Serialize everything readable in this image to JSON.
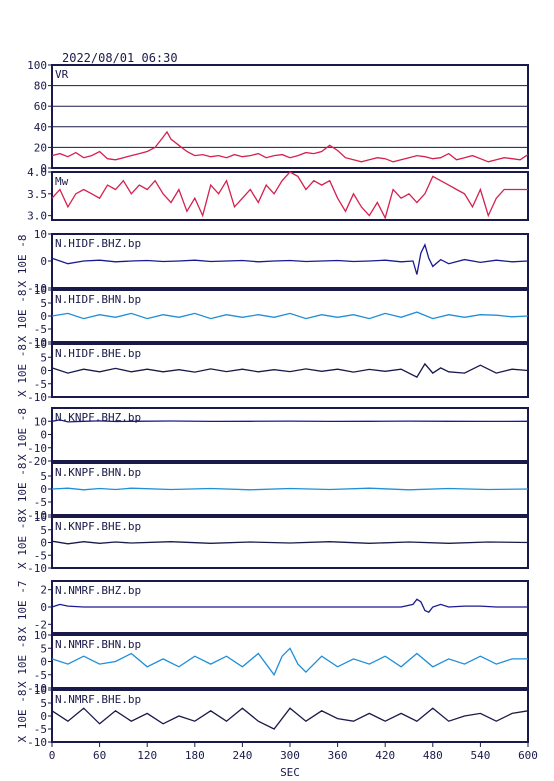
{
  "header": {
    "datetime": "2022/08/01 06:30"
  },
  "xaxis": {
    "label": "SEC",
    "ticks": [
      "0",
      "60",
      "120",
      "180",
      "240",
      "300",
      "360",
      "420",
      "480",
      "540",
      "600"
    ],
    "range": [
      0,
      600
    ]
  },
  "colors": {
    "frame": "#1a1a4a",
    "vr": "#d6204e",
    "mw": "#d6204e",
    "dark_trace": "#1a1a90",
    "light_trace": "#1f8fd6",
    "grid": "#1a1a4a"
  },
  "chart_data": [
    {
      "type": "line",
      "label": "VR",
      "color": "#d6204e",
      "ylim": [
        0,
        100
      ],
      "yticks": [
        "0",
        "20",
        "40",
        "60",
        "80",
        "100"
      ],
      "grid": true,
      "x": [
        0,
        10,
        20,
        30,
        40,
        50,
        60,
        70,
        80,
        90,
        100,
        110,
        120,
        130,
        140,
        145,
        150,
        160,
        170,
        180,
        190,
        200,
        210,
        220,
        230,
        240,
        250,
        260,
        270,
        280,
        290,
        300,
        310,
        320,
        330,
        340,
        350,
        360,
        370,
        380,
        390,
        400,
        410,
        420,
        430,
        440,
        450,
        460,
        470,
        480,
        490,
        500,
        510,
        520,
        530,
        540,
        550,
        560,
        570,
        580,
        590,
        600
      ],
      "values": [
        12,
        14,
        11,
        15,
        10,
        12,
        16,
        9,
        8,
        10,
        12,
        14,
        16,
        20,
        30,
        35,
        28,
        22,
        16,
        12,
        13,
        11,
        12,
        10,
        13,
        11,
        12,
        14,
        10,
        12,
        13,
        10,
        12,
        15,
        14,
        16,
        22,
        17,
        10,
        8,
        6,
        8,
        10,
        9,
        6,
        8,
        10,
        12,
        11,
        9,
        10,
        14,
        8,
        10,
        12,
        9,
        6,
        8,
        10,
        9,
        8,
        13
      ]
    },
    {
      "type": "line",
      "label": "Mw",
      "color": "#d6204e",
      "ylim": [
        2.9,
        4.0
      ],
      "yticks": [
        "3.0",
        "3.5",
        "4.0"
      ],
      "grid": false,
      "x": [
        0,
        10,
        20,
        30,
        40,
        50,
        60,
        70,
        80,
        90,
        100,
        110,
        120,
        130,
        140,
        150,
        160,
        170,
        180,
        190,
        200,
        210,
        220,
        230,
        240,
        250,
        260,
        270,
        280,
        290,
        300,
        310,
        320,
        330,
        340,
        350,
        360,
        370,
        380,
        390,
        400,
        410,
        420,
        430,
        440,
        450,
        460,
        470,
        480,
        490,
        500,
        510,
        520,
        530,
        540,
        550,
        560,
        570,
        580,
        590,
        600
      ],
      "values": [
        3.4,
        3.6,
        3.2,
        3.5,
        3.6,
        3.5,
        3.4,
        3.7,
        3.6,
        3.8,
        3.5,
        3.7,
        3.6,
        3.8,
        3.5,
        3.3,
        3.6,
        3.1,
        3.4,
        3.0,
        3.7,
        3.5,
        3.8,
        3.2,
        3.4,
        3.6,
        3.3,
        3.7,
        3.5,
        3.8,
        4.0,
        3.9,
        3.6,
        3.8,
        3.7,
        3.8,
        3.4,
        3.1,
        3.5,
        3.2,
        3.0,
        3.3,
        2.95,
        3.6,
        3.4,
        3.5,
        3.3,
        3.5,
        3.9,
        3.8,
        3.7,
        3.6,
        3.5,
        3.2,
        3.6,
        3.0,
        3.4,
        3.6,
        3.6,
        3.6,
        3.6
      ]
    },
    {
      "type": "line",
      "label": "N.HIDF.BHZ.bp",
      "units": "X 10E -8",
      "color": "#1a1a90",
      "ylim": [
        -10,
        10
      ],
      "yticks": [
        "-10",
        "0",
        "10"
      ],
      "x": [
        0,
        20,
        40,
        60,
        80,
        100,
        120,
        140,
        160,
        180,
        200,
        220,
        240,
        260,
        280,
        300,
        320,
        340,
        360,
        380,
        400,
        420,
        440,
        455,
        460,
        465,
        470,
        475,
        480,
        490,
        500,
        520,
        540,
        560,
        580,
        600
      ],
      "values": [
        1,
        -1,
        0,
        0.3,
        -0.3,
        0,
        0.2,
        -0.2,
        0,
        0.3,
        -0.2,
        0,
        0.2,
        -0.3,
        0,
        0.2,
        -0.2,
        0,
        0.2,
        -0.2,
        0,
        0.3,
        -0.3,
        0,
        -5,
        3,
        6,
        1,
        -2,
        0.5,
        -1,
        0.5,
        -0.5,
        0.3,
        -0.3,
        0
      ]
    },
    {
      "type": "line",
      "label": "N.HIDF.BHN.bp",
      "units": "X 10E -8",
      "color": "#1f8fd6",
      "ylim": [
        -10,
        10
      ],
      "yticks": [
        "-10",
        "-5",
        "0",
        "5",
        "10"
      ],
      "x": [
        0,
        20,
        40,
        60,
        80,
        100,
        120,
        140,
        160,
        180,
        200,
        220,
        240,
        260,
        280,
        300,
        320,
        340,
        360,
        380,
        400,
        420,
        440,
        460,
        480,
        500,
        520,
        540,
        560,
        580,
        600
      ],
      "values": [
        0,
        1,
        -1,
        0.5,
        -0.5,
        1,
        -1,
        0.5,
        -0.5,
        1,
        -1,
        0.5,
        -0.5,
        0.5,
        -0.5,
        1,
        -1,
        0.5,
        -0.5,
        0.5,
        -1,
        1,
        -0.5,
        1.5,
        -1,
        0.5,
        -0.5,
        0.5,
        0.3,
        -0.3,
        0
      ]
    },
    {
      "type": "line",
      "label": "N.HIDF.BHE.bp",
      "units": "X 10E -8",
      "color": "#1a1a4a",
      "ylim": [
        -10,
        10
      ],
      "yticks": [
        "-10",
        "-5",
        "0",
        "5",
        "10"
      ],
      "x": [
        0,
        20,
        40,
        60,
        80,
        100,
        120,
        140,
        160,
        180,
        200,
        220,
        240,
        260,
        280,
        300,
        320,
        340,
        360,
        380,
        400,
        420,
        440,
        460,
        470,
        480,
        490,
        500,
        520,
        540,
        560,
        580,
        600
      ],
      "values": [
        1,
        -1,
        0.5,
        -0.5,
        0.8,
        -0.5,
        0.5,
        -0.5,
        0.3,
        -0.6,
        0.6,
        -0.4,
        0.5,
        -0.5,
        0.3,
        -0.4,
        0.6,
        -0.3,
        0.5,
        -0.6,
        0.4,
        -0.3,
        0.5,
        -2.5,
        2.5,
        -1,
        1,
        -0.5,
        -1,
        2,
        -1,
        0.5,
        0
      ]
    },
    {
      "type": "line",
      "label": "N.KNPF.BHZ.bp",
      "units": "X 10E -8",
      "color": "#1a1a90",
      "ylim": [
        -20,
        20
      ],
      "yticks": [
        "-20",
        "-10",
        "0",
        "10"
      ],
      "x": [
        0,
        10,
        20,
        40,
        60,
        80,
        100,
        150,
        200,
        250,
        300,
        350,
        400,
        450,
        500,
        550,
        600
      ],
      "values": [
        10,
        11,
        9.5,
        10,
        10.3,
        9.8,
        10,
        10.2,
        9.9,
        10,
        10.1,
        9.9,
        10,
        10.1,
        10,
        9.9,
        10
      ]
    },
    {
      "type": "line",
      "label": "N.KNPF.BHN.bp",
      "units": "X 10E -8",
      "color": "#1f8fd6",
      "ylim": [
        -10,
        10
      ],
      "yticks": [
        "-10",
        "-5",
        "0",
        "5"
      ],
      "x": [
        0,
        20,
        40,
        60,
        80,
        100,
        150,
        200,
        250,
        300,
        350,
        400,
        450,
        500,
        550,
        600
      ],
      "values": [
        0,
        0.3,
        -0.3,
        0.2,
        -0.2,
        0.3,
        -0.2,
        0.2,
        -0.3,
        0.2,
        -0.2,
        0.3,
        -0.3,
        0.2,
        -0.2,
        0
      ]
    },
    {
      "type": "line",
      "label": "N.KNPF.BHE.bp",
      "units": "X 10E -8",
      "color": "#1a1a4a",
      "ylim": [
        -10,
        10
      ],
      "yticks": [
        "-10",
        "-5",
        "0",
        "5",
        "10"
      ],
      "x": [
        0,
        20,
        40,
        60,
        80,
        100,
        150,
        200,
        250,
        300,
        350,
        400,
        450,
        500,
        550,
        600
      ],
      "values": [
        0.5,
        -0.5,
        0.3,
        -0.3,
        0.2,
        -0.2,
        0.3,
        -0.3,
        0.2,
        -0.2,
        0.3,
        -0.3,
        0.2,
        -0.3,
        0.2,
        0
      ]
    },
    {
      "type": "line",
      "label": "N.NMRF.BHZ.bp",
      "units": "X 10E -7",
      "color": "#1a1a90",
      "ylim": [
        -3,
        3
      ],
      "yticks": [
        "-2",
        "0",
        "2"
      ],
      "x": [
        0,
        10,
        20,
        40,
        60,
        100,
        200,
        300,
        400,
        440,
        455,
        460,
        465,
        470,
        475,
        480,
        490,
        500,
        520,
        540,
        560,
        580,
        600
      ],
      "values": [
        0,
        0.3,
        0.1,
        0,
        0,
        0,
        0,
        0,
        0,
        0,
        0.3,
        0.9,
        0.6,
        -0.4,
        -0.6,
        0,
        0.3,
        0,
        0.1,
        0.1,
        0,
        0,
        0
      ]
    },
    {
      "type": "line",
      "label": "N.NMRF.BHN.bp",
      "units": "X 10E -8",
      "color": "#1f8fd6",
      "ylim": [
        -10,
        10
      ],
      "yticks": [
        "-10",
        "-5",
        "0",
        "5",
        "10"
      ],
      "x": [
        0,
        20,
        40,
        60,
        80,
        100,
        120,
        140,
        160,
        180,
        200,
        220,
        240,
        260,
        280,
        290,
        300,
        310,
        320,
        340,
        360,
        380,
        400,
        420,
        440,
        460,
        480,
        500,
        520,
        540,
        560,
        580,
        600
      ],
      "values": [
        1,
        -1,
        2,
        -1,
        0,
        3,
        -2,
        1,
        -2,
        2,
        -1,
        2,
        -2,
        3,
        -5,
        2,
        5,
        -1,
        -4,
        2,
        -2,
        1,
        -1,
        2,
        -2,
        3,
        -2,
        1,
        -1,
        2,
        -1,
        1,
        1
      ]
    },
    {
      "type": "line",
      "label": "N.NMRF.BHE.bp",
      "units": "X 10E -8",
      "color": "#1a1a4a",
      "ylim": [
        -10,
        10
      ],
      "yticks": [
        "-10",
        "-5",
        "0",
        "5",
        "10"
      ],
      "x": [
        0,
        20,
        40,
        60,
        80,
        100,
        120,
        140,
        160,
        180,
        200,
        220,
        240,
        260,
        280,
        300,
        320,
        340,
        360,
        380,
        400,
        420,
        440,
        460,
        480,
        500,
        520,
        540,
        560,
        580,
        600
      ],
      "values": [
        2,
        -2,
        3,
        -3,
        2,
        -2,
        1,
        -3,
        0,
        -2,
        2,
        -2,
        3,
        -2,
        -5,
        3,
        -2,
        2,
        -1,
        -2,
        1,
        -2,
        1,
        -2,
        3,
        -2,
        0,
        1,
        -2,
        1,
        2
      ]
    }
  ]
}
